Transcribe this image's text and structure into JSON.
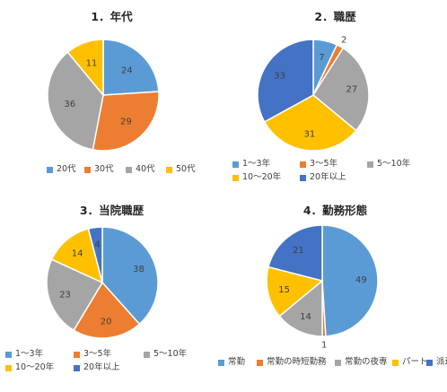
{
  "colors": {
    "blue": "#5b9bd5",
    "orange": "#ed7d31",
    "gray": "#a5a5a5",
    "yellow": "#ffc000",
    "darkblue": "#4472c4"
  },
  "chart_data": [
    {
      "type": "pie",
      "title": "1．年代",
      "categories": [
        "20代",
        "30代",
        "40代",
        "50代"
      ],
      "values": [
        24,
        29,
        36,
        11
      ],
      "colors": [
        "#5b9bd5",
        "#ed7d31",
        "#a5a5a5",
        "#ffc000"
      ],
      "legend_position": "bottom"
    },
    {
      "type": "pie",
      "title": "2．職歴",
      "categories": [
        "1～3年",
        "3～5年",
        "5～10年",
        "10～20年",
        "20年以上"
      ],
      "values": [
        7,
        2,
        27,
        31,
        33
      ],
      "colors": [
        "#5b9bd5",
        "#ed7d31",
        "#a5a5a5",
        "#ffc000",
        "#4472c4"
      ],
      "legend_position": "bottom"
    },
    {
      "type": "pie",
      "title": "3．当院職歴",
      "categories": [
        "1～3年",
        "3～5年",
        "5～10年",
        "10～20年",
        "20年以上"
      ],
      "values": [
        38,
        20,
        23,
        14,
        4
      ],
      "colors": [
        "#5b9bd5",
        "#ed7d31",
        "#a5a5a5",
        "#ffc000",
        "#4472c4"
      ],
      "legend_position": "bottom"
    },
    {
      "type": "pie",
      "title": "4．勤務形態",
      "categories": [
        "常勤",
        "常勤の時短勤務",
        "常勤の夜専",
        "パート",
        "派遣"
      ],
      "values": [
        49,
        1,
        14,
        15,
        21
      ],
      "colors": [
        "#5b9bd5",
        "#ed7d31",
        "#a5a5a5",
        "#ffc000",
        "#4472c4"
      ],
      "legend_position": "bottom"
    }
  ]
}
